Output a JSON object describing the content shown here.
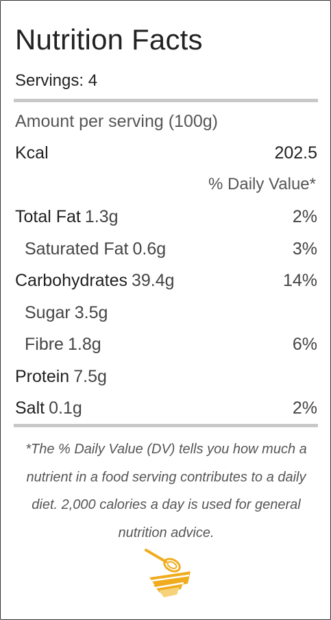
{
  "nutrition": {
    "title": "Nutrition Facts",
    "servings": "Servings: 4",
    "amount_per_serving": "Amount per serving (100g)",
    "kcal": {
      "label": "Kcal",
      "value": "202.5"
    },
    "daily_value_header": "% Daily Value*",
    "nutrients": [
      {
        "label": "Total Fat",
        "qty": "1.3g",
        "pct": "2%"
      },
      {
        "label": "Saturated Fat",
        "qty": "0.6g",
        "pct": "3%"
      },
      {
        "label": "Carbohydrates",
        "qty": "39.4g",
        "pct": "14%"
      },
      {
        "label": "Sugar",
        "qty": "3.5g",
        "pct": ""
      },
      {
        "label": "Fibre",
        "qty": "1.8g",
        "pct": "6%"
      },
      {
        "label": "Protein",
        "qty": "7.5g",
        "pct": ""
      },
      {
        "label": "Salt",
        "qty": "0.1g",
        "pct": "2%"
      }
    ],
    "footnote": "*The % Daily Value (DV) tells you how much a nutrient in a food serving contributes to a daily diet. 2,000 calories a day is used for general nutrition advice."
  },
  "logo": {
    "icon": "whisk-bowl-icon",
    "colors": {
      "primary": "#f0ac1e",
      "light": "#f6d27a"
    }
  }
}
